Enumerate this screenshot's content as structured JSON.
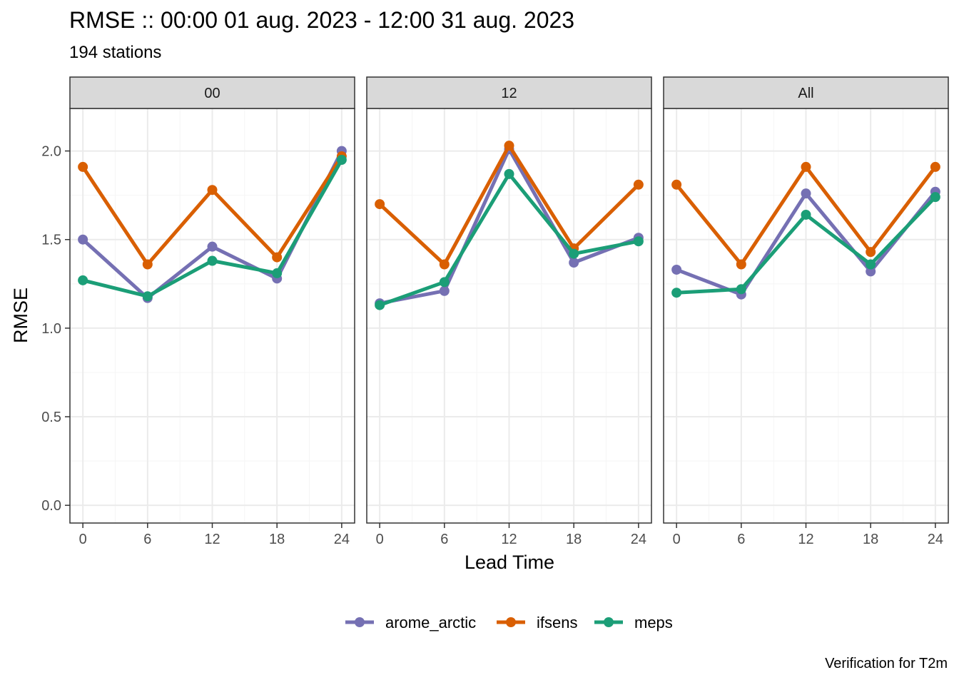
{
  "chart_data": {
    "type": "line",
    "title": "RMSE :: 00:00 01 aug. 2023 - 12:00 31 aug. 2023",
    "subtitle": "194 stations",
    "caption": "Verification for T2m",
    "xlabel": "Lead Time",
    "ylabel": "RMSE",
    "x": [
      0,
      6,
      12,
      18,
      24
    ],
    "x_ticks": [
      "0",
      "6",
      "12",
      "18",
      "24"
    ],
    "y_ticks": [
      "0.0",
      "0.5",
      "1.0",
      "1.5",
      "2.0"
    ],
    "ylim": [
      -0.1,
      2.24
    ],
    "xlim": [
      -1.2,
      25.2
    ],
    "grid": true,
    "legend_position": "bottom",
    "series_colors": {
      "arome_actic": "#7570B3",
      "ifsens": "#D95F02",
      "meps": "#1B9E77"
    },
    "legend": [
      {
        "name": "arome_arctic",
        "color": "#7570B3"
      },
      {
        "name": "ifsens",
        "color": "#D95F02"
      },
      {
        "name": "meps",
        "color": "#1B9E77"
      }
    ],
    "panels": [
      {
        "label": "00",
        "series": [
          {
            "name": "arome_arctic",
            "color": "#7570B3",
            "values": [
              1.5,
              1.17,
              1.46,
              1.28,
              2.0
            ]
          },
          {
            "name": "ifsens",
            "color": "#D95F02",
            "values": [
              1.91,
              1.36,
              1.78,
              1.4,
              1.97
            ]
          },
          {
            "name": "meps",
            "color": "#1B9E77",
            "values": [
              1.27,
              1.18,
              1.38,
              1.31,
              1.95
            ]
          }
        ]
      },
      {
        "label": "12",
        "series": [
          {
            "name": "arome_arctic",
            "color": "#7570B3",
            "values": [
              1.14,
              1.21,
              2.01,
              1.37,
              1.51
            ]
          },
          {
            "name": "ifsens",
            "color": "#D95F02",
            "values": [
              1.7,
              1.36,
              2.03,
              1.45,
              1.81
            ]
          },
          {
            "name": "meps",
            "color": "#1B9E77",
            "values": [
              1.13,
              1.26,
              1.87,
              1.42,
              1.49
            ]
          }
        ]
      },
      {
        "label": "All",
        "series": [
          {
            "name": "arome_arctic",
            "color": "#7570B3",
            "values": [
              1.33,
              1.19,
              1.76,
              1.32,
              1.77
            ]
          },
          {
            "name": "ifsens",
            "color": "#D95F02",
            "values": [
              1.81,
              1.36,
              1.91,
              1.43,
              1.91
            ]
          },
          {
            "name": "meps",
            "color": "#1B9E77",
            "values": [
              1.2,
              1.22,
              1.64,
              1.36,
              1.74
            ]
          }
        ]
      }
    ]
  }
}
